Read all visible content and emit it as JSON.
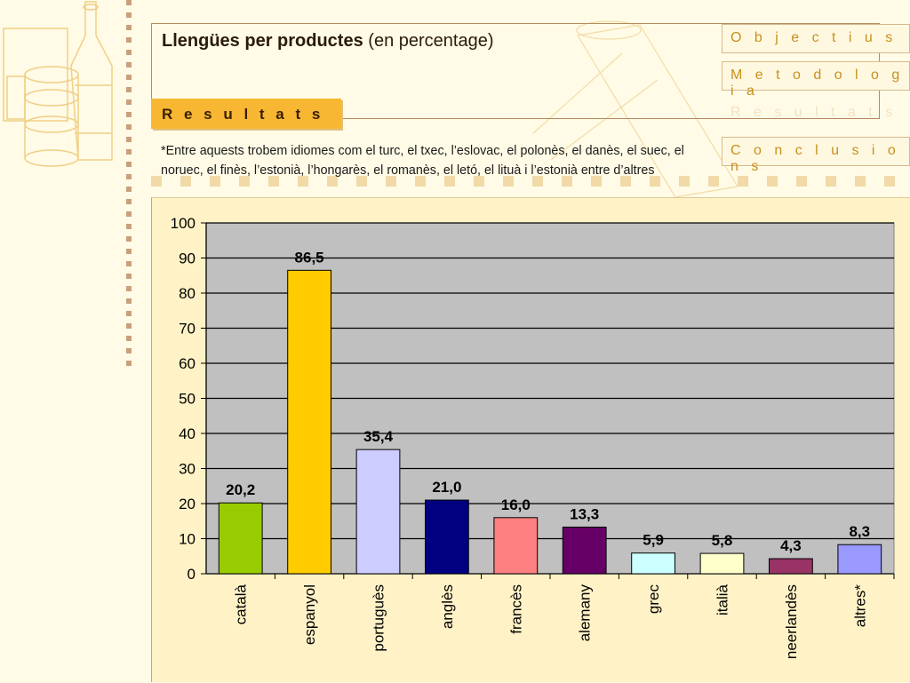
{
  "header": {
    "title_bold": "Llengües per productes",
    "title_rest": "(en percentage)",
    "active_section": "R e s u l t a t s"
  },
  "nav": {
    "items": [
      {
        "label": "O b j e c t i u s"
      },
      {
        "label": "M e t o d o l o g i a"
      },
      {
        "label": "R e s u l t a t s"
      },
      {
        "label": "C o n c l u s i o n s"
      }
    ]
  },
  "note": "*Entre aquests trobem idiomes com el turc, el txec, l’eslovac, el polonès, el danès, el suec, el noruec, el finès, l’estonià, l’hongarès, el romanès, el letó, el lituà i l’estonià entre d’altres",
  "colors": {
    "accent": "#f7b733",
    "nav_text": "#c7901c",
    "plot_bg": "#c0c0c0"
  },
  "chart_data": {
    "type": "bar",
    "categories": [
      "català",
      "espanyol",
      "portuguès",
      "anglès",
      "francès",
      "alemany",
      "grec",
      "italià",
      "neerlandès",
      "altres*"
    ],
    "values": [
      20.2,
      86.5,
      35.4,
      21.0,
      16.0,
      13.3,
      5.9,
      5.8,
      4.3,
      8.3
    ],
    "value_labels": [
      "20,2",
      "86,5",
      "35,4",
      "21,0",
      "16,0",
      "13,3",
      "5,9",
      "5,8",
      "4,3",
      "8,3"
    ],
    "colors": [
      "#99cc00",
      "#ffcc00",
      "#ccccff",
      "#000080",
      "#ff8080",
      "#660066",
      "#ccffff",
      "#ffffcc",
      "#993366",
      "#9999ff"
    ],
    "ylim": [
      0,
      100
    ],
    "yticks": [
      0,
      10,
      20,
      30,
      40,
      50,
      60,
      70,
      80,
      90,
      100
    ],
    "grid": true,
    "xlabel": "",
    "ylabel": ""
  }
}
